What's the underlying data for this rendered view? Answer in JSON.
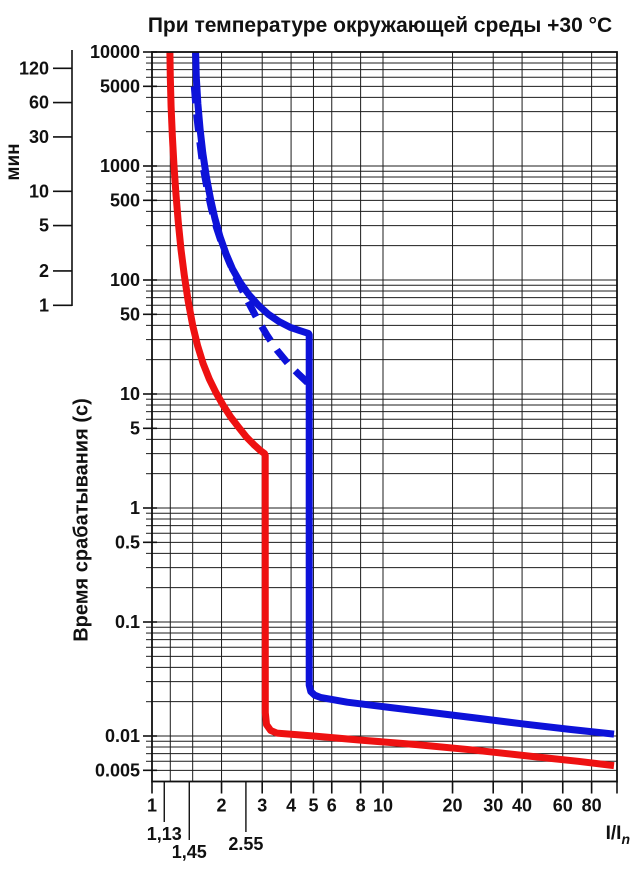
{
  "title": "При температуре окружающей среды +30 °C",
  "y_axis": {
    "label": "Время срабатывания (с)",
    "tick_labels": [
      [
        "10000",
        10000
      ],
      [
        "5000",
        5000
      ],
      [
        "1000",
        1000
      ],
      [
        "500",
        500
      ],
      [
        "100",
        100
      ],
      [
        "50",
        50
      ],
      [
        "10",
        10
      ],
      [
        "5",
        5
      ],
      [
        "1",
        1
      ],
      [
        "0.5",
        0.5
      ],
      [
        "0.1",
        0.1
      ],
      [
        "0.01",
        0.01
      ],
      [
        "0.005",
        0.005
      ]
    ]
  },
  "minutes_axis": {
    "label": "мин",
    "tick_labels": [
      [
        "120",
        120
      ],
      [
        "60",
        60
      ],
      [
        "30",
        30
      ],
      [
        "10",
        10
      ],
      [
        "5",
        5
      ],
      [
        "2",
        2
      ],
      [
        "1",
        1
      ]
    ]
  },
  "x_axis": {
    "label_main": "I/I",
    "label_sub": "n",
    "tick_labels": [
      [
        "1",
        1
      ],
      [
        "2",
        2
      ],
      [
        "3",
        3
      ],
      [
        "4",
        4
      ],
      [
        "5",
        5
      ],
      [
        "6",
        6
      ],
      [
        "8",
        8
      ],
      [
        "10",
        10
      ],
      [
        "20",
        20
      ],
      [
        "30",
        30
      ],
      [
        "40",
        40
      ],
      [
        "60",
        60
      ],
      [
        "80",
        80
      ]
    ],
    "special_ticks": [
      {
        "label": "1,13",
        "value": 1.13,
        "tick_end_y": 822,
        "label_y": 840
      },
      {
        "label": "1,45",
        "value": 1.45,
        "tick_end_y": 840,
        "label_y": 858
      },
      {
        "label": "2.55",
        "value": 2.55,
        "tick_end_y": 832,
        "label_y": 850
      }
    ]
  },
  "grid": {
    "v_lines": [
      1.2,
      1.5,
      2,
      3,
      4,
      5,
      6,
      8,
      10,
      20,
      30,
      40,
      60,
      80
    ],
    "color": "#1c1c1c"
  },
  "chart_data": {
    "type": "line",
    "title": "При температуре окружающей среды +30 °C",
    "xlabel": "I/In",
    "ylabel": "Время срабатывания (с)",
    "x_scale": "log",
    "y_scale": "log",
    "x_range": [
      1,
      103
    ],
    "y_range": [
      0.004,
      10000
    ],
    "grid": "on",
    "legend": "none",
    "series": [
      {
        "name": "lower-trip-limit-red",
        "color": "#ee1111",
        "style": "solid",
        "points": [
          [
            1.195,
            10000
          ],
          [
            1.2,
            6000
          ],
          [
            1.21,
            3300
          ],
          [
            1.225,
            1800
          ],
          [
            1.245,
            1000
          ],
          [
            1.27,
            560
          ],
          [
            1.3,
            320
          ],
          [
            1.335,
            185
          ],
          [
            1.38,
            110
          ],
          [
            1.435,
            65
          ],
          [
            1.5,
            40
          ],
          [
            1.575,
            26.5
          ],
          [
            1.665,
            18.5
          ],
          [
            1.77,
            13.5
          ],
          [
            1.89,
            10.3
          ],
          [
            2.03,
            8
          ],
          [
            2.19,
            6.3
          ],
          [
            2.37,
            5.1
          ],
          [
            2.56,
            4.2
          ],
          [
            2.76,
            3.6
          ],
          [
            2.94,
            3.2
          ],
          [
            3.07,
            3
          ],
          [
            3.09,
            2.9
          ],
          [
            3.095,
            0.016
          ],
          [
            3.13,
            0.0126
          ],
          [
            3.26,
            0.0112
          ],
          [
            3.47,
            0.0106
          ],
          [
            5,
            0.01
          ],
          [
            8,
            0.0092
          ],
          [
            14,
            0.0084
          ],
          [
            25,
            0.0075
          ],
          [
            45,
            0.0066
          ],
          [
            70,
            0.006
          ],
          [
            100,
            0.0055
          ]
        ]
      },
      {
        "name": "upper-trip-limit-blue",
        "color": "#0d12d9",
        "style": "solid",
        "points": [
          [
            1.545,
            10000
          ],
          [
            1.555,
            6000
          ],
          [
            1.58,
            3500
          ],
          [
            1.615,
            2100
          ],
          [
            1.66,
            1300
          ],
          [
            1.72,
            800
          ],
          [
            1.79,
            520
          ],
          [
            1.87,
            350
          ],
          [
            1.97,
            240
          ],
          [
            2.09,
            170
          ],
          [
            2.23,
            125
          ],
          [
            2.41,
            95
          ],
          [
            2.63,
            74
          ],
          [
            2.89,
            60
          ],
          [
            3.19,
            50
          ],
          [
            3.56,
            43
          ],
          [
            3.96,
            38.5
          ],
          [
            4.36,
            36
          ],
          [
            4.76,
            34
          ],
          [
            4.79,
            33
          ],
          [
            4.79,
            0.028
          ],
          [
            4.87,
            0.0245
          ],
          [
            5.06,
            0.0228
          ],
          [
            5.36,
            0.0218
          ],
          [
            7,
            0.0198
          ],
          [
            10,
            0.0181
          ],
          [
            16,
            0.0161
          ],
          [
            25,
            0.0144
          ],
          [
            40,
            0.0128
          ],
          [
            63,
            0.0115
          ],
          [
            100,
            0.0104
          ]
        ]
      },
      {
        "name": "upper-trip-limit-blue-dashed",
        "color": "#0d12d9",
        "style": "dashed",
        "points": [
          [
            1.525,
            5000
          ],
          [
            1.555,
            3000
          ],
          [
            1.6,
            1800
          ],
          [
            1.655,
            1050
          ],
          [
            1.725,
            660
          ],
          [
            1.805,
            430
          ],
          [
            1.9,
            290
          ],
          [
            2.02,
            200
          ],
          [
            2.17,
            140
          ],
          [
            2.35,
            98
          ],
          [
            2.57,
            68
          ],
          [
            2.83,
            47
          ],
          [
            3.14,
            33
          ],
          [
            3.49,
            24
          ],
          [
            3.88,
            18.5
          ],
          [
            4.33,
            14.8
          ],
          [
            4.79,
            12.2
          ]
        ]
      }
    ]
  }
}
